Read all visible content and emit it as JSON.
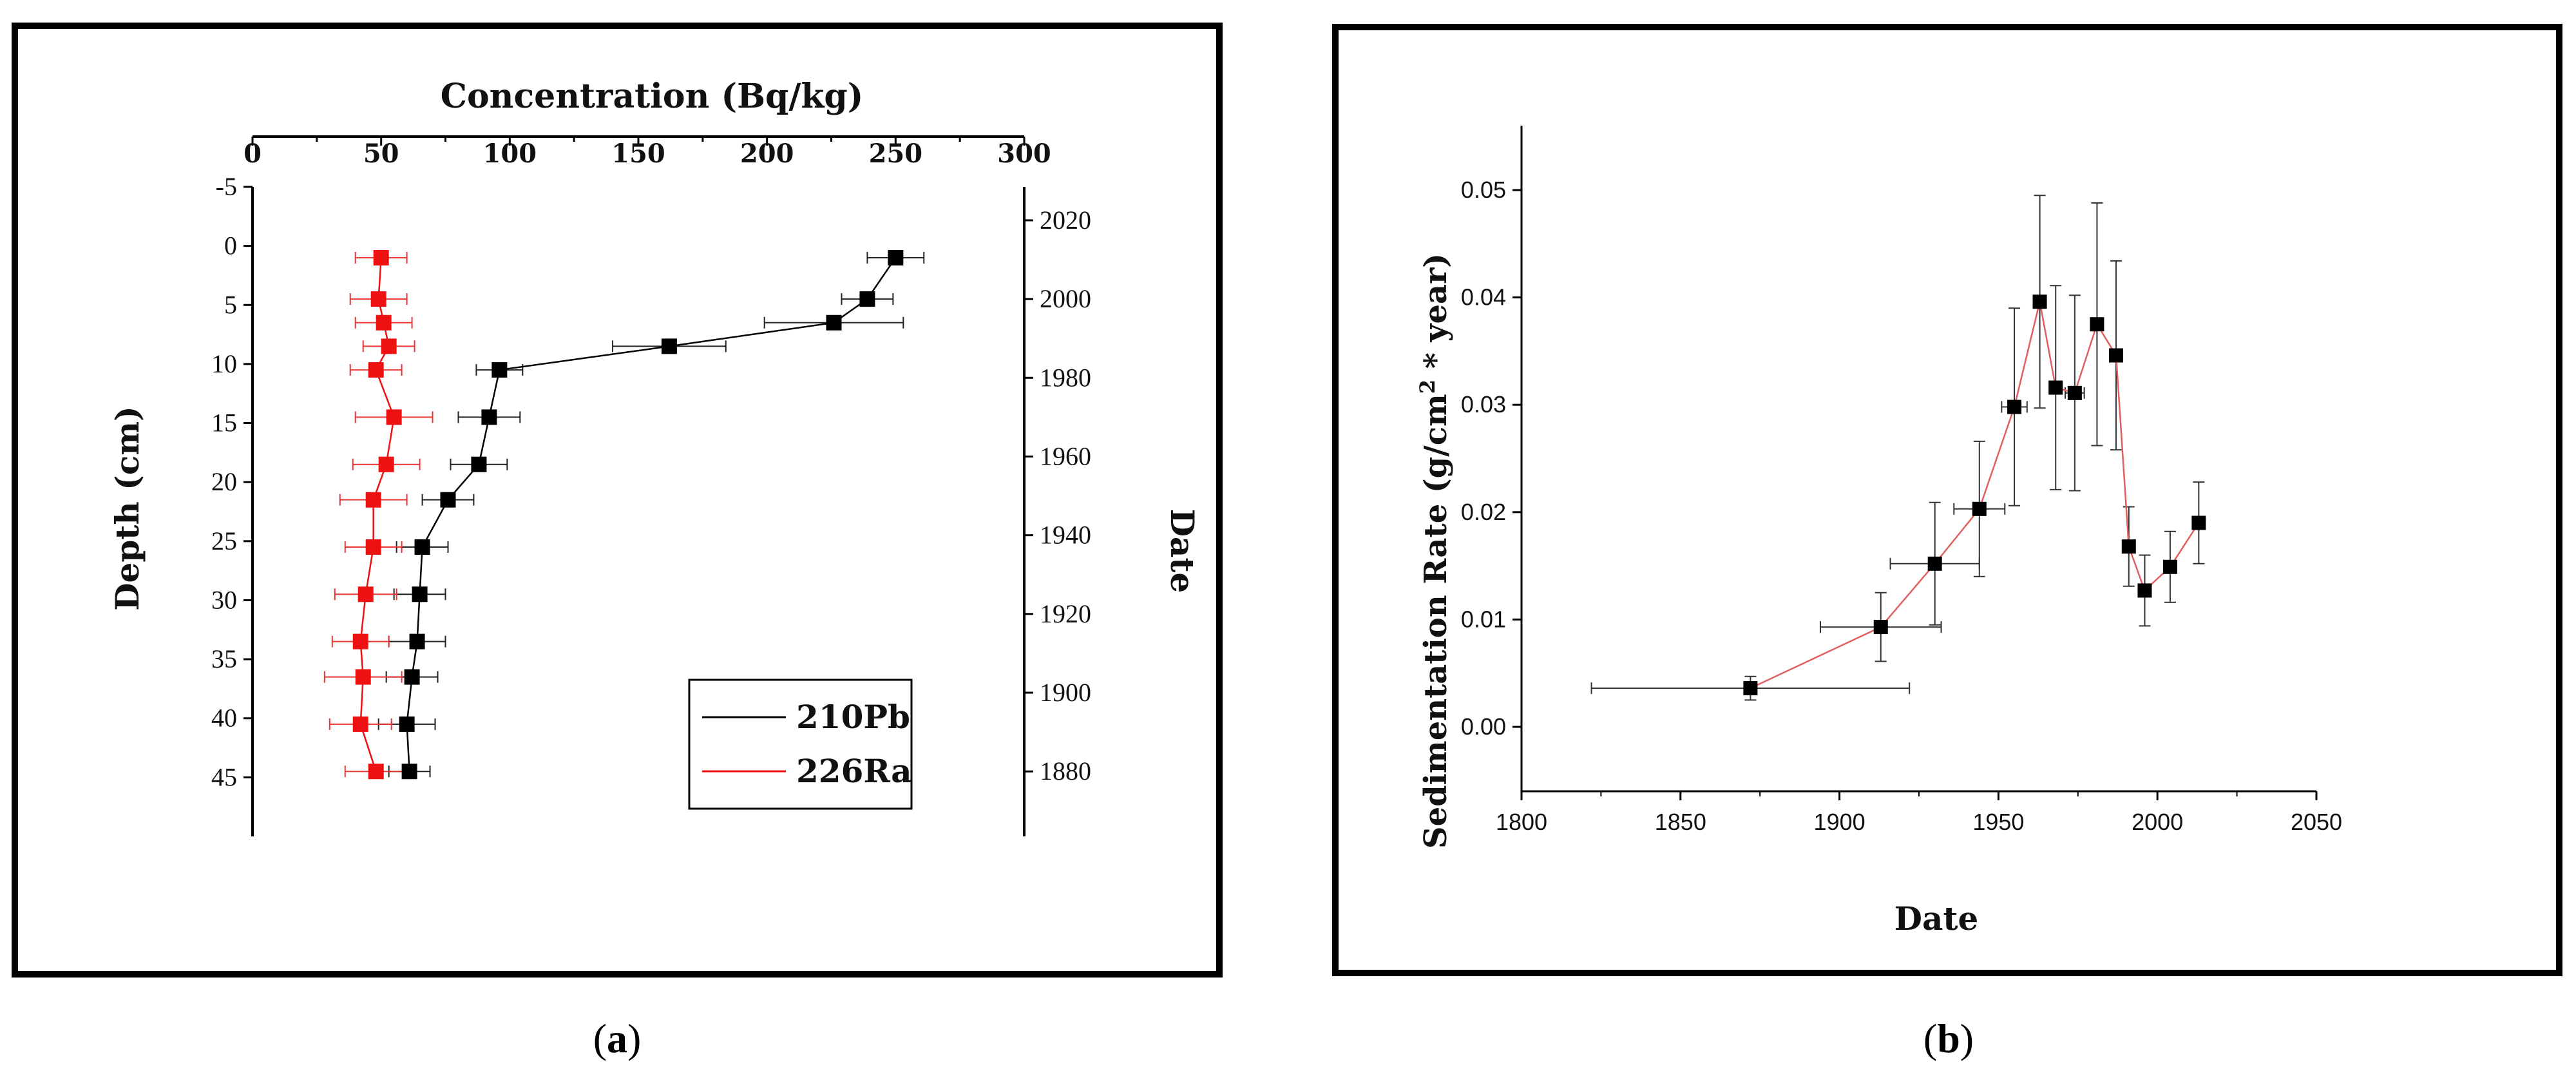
{
  "chart_data": [
    {
      "panel": "(a)",
      "type": "line",
      "title": "",
      "x_top_label": "Concentration (Bq/kg)",
      "y_left_label": "Depth (cm)",
      "y_right_label": "Date",
      "x_ticks": [
        "0",
        "50",
        "100",
        "150",
        "200",
        "250",
        "300"
      ],
      "y_left_ticks": [
        "-5",
        "0",
        "5",
        "10",
        "15",
        "20",
        "25",
        "30",
        "35",
        "40",
        "45"
      ],
      "y_right_ticks": [
        "2020",
        "2000",
        "1980",
        "1960",
        "1940",
        "1920",
        "1900",
        "1880"
      ],
      "xlim": [
        0,
        300
      ],
      "ylim": [
        -5,
        50
      ],
      "y_inverted": true,
      "legend_position": "bottom-right",
      "series": [
        {
          "name": "210Pb",
          "color": "#000000",
          "marker": "square",
          "points": [
            {
              "depth": 1,
              "value": 250,
              "err": 11
            },
            {
              "depth": 4.5,
              "value": 239,
              "err": 10
            },
            {
              "depth": 6.5,
              "value": 226,
              "err": 27
            },
            {
              "depth": 8.5,
              "value": 162,
              "err": 22
            },
            {
              "depth": 10.5,
              "value": 96,
              "err": 9
            },
            {
              "depth": 14.5,
              "value": 92,
              "err": 12
            },
            {
              "depth": 18.5,
              "value": 88,
              "err": 11
            },
            {
              "depth": 21.5,
              "value": 76,
              "err": 10
            },
            {
              "depth": 25.5,
              "value": 66,
              "err": 10
            },
            {
              "depth": 29.5,
              "value": 65,
              "err": 10
            },
            {
              "depth": 33.5,
              "value": 64,
              "err": 11
            },
            {
              "depth": 36.5,
              "value": 62,
              "err": 10
            },
            {
              "depth": 40.5,
              "value": 60,
              "err": 11
            },
            {
              "depth": 44.5,
              "value": 61,
              "err": 8
            }
          ]
        },
        {
          "name": "226Ra",
          "color": "#ee1111",
          "marker": "square",
          "points": [
            {
              "depth": 1,
              "value": 50,
              "err": 10
            },
            {
              "depth": 4.5,
              "value": 49,
              "err": 11
            },
            {
              "depth": 6.5,
              "value": 51,
              "err": 11
            },
            {
              "depth": 8.5,
              "value": 53,
              "err": 10
            },
            {
              "depth": 10.5,
              "value": 48,
              "err": 10
            },
            {
              "depth": 14.5,
              "value": 55,
              "err": 15
            },
            {
              "depth": 18.5,
              "value": 52,
              "err": 13
            },
            {
              "depth": 21.5,
              "value": 47,
              "err": 13
            },
            {
              "depth": 25.5,
              "value": 47,
              "err": 11
            },
            {
              "depth": 29.5,
              "value": 44,
              "err": 12
            },
            {
              "depth": 33.5,
              "value": 42,
              "err": 11
            },
            {
              "depth": 36.5,
              "value": 43,
              "err": 15
            },
            {
              "depth": 40.5,
              "value": 42,
              "err": 12
            },
            {
              "depth": 44.5,
              "value": 48,
              "err": 12
            }
          ]
        }
      ]
    },
    {
      "panel": "(b)",
      "type": "scatter",
      "title": "",
      "xlabel": "Date",
      "ylabel_main": "Sedimentation Rate (g/cm",
      "ylabel_sup": "2",
      "ylabel_tail": " * year)",
      "x_ticks": [
        "1800",
        "1850",
        "1900",
        "1950",
        "2000",
        "2050"
      ],
      "y_ticks": [
        "0.00",
        "0.01",
        "0.02",
        "0.03",
        "0.04",
        "0.05"
      ],
      "xlim": [
        1800,
        2050
      ],
      "ylim": [
        -0.006,
        0.056
      ],
      "series": [
        {
          "color": "#000000",
          "line_color": "#e06060",
          "marker": "square",
          "points": [
            {
              "x": 1872,
              "y": 0.0036,
              "xerr": 50,
              "yerr": 0.0011
            },
            {
              "x": 1913,
              "y": 0.0093,
              "xerr": 19,
              "yerr": 0.0032
            },
            {
              "x": 1930,
              "y": 0.0152,
              "xerr": 14,
              "yerr": 0.0057
            },
            {
              "x": 1944,
              "y": 0.0203,
              "xerr": 8,
              "yerr": 0.0063
            },
            {
              "x": 1955,
              "y": 0.0298,
              "xerr": 4,
              "yerr": 0.0092
            },
            {
              "x": 1963,
              "y": 0.0396,
              "xerr": 2,
              "yerr": 0.0099
            },
            {
              "x": 1968,
              "y": 0.0316,
              "xerr": 2,
              "yerr": 0.0095
            },
            {
              "x": 1974,
              "y": 0.0311,
              "xerr": 3,
              "yerr": 0.0091
            },
            {
              "x": 1981,
              "y": 0.0375,
              "xerr": 1,
              "yerr": 0.0113
            },
            {
              "x": 1987,
              "y": 0.0346,
              "xerr": 2,
              "yerr": 0.0088
            },
            {
              "x": 1991,
              "y": 0.0168,
              "xerr": 1,
              "yerr": 0.0037
            },
            {
              "x": 1996,
              "y": 0.0127,
              "xerr": 1,
              "yerr": 0.0033
            },
            {
              "x": 2004,
              "y": 0.0149,
              "xerr": 1,
              "yerr": 0.0033
            },
            {
              "x": 2013,
              "y": 0.019,
              "xerr": 0.5,
              "yerr": 0.0038
            }
          ]
        }
      ]
    }
  ],
  "captions": {
    "a_open": "(",
    "a_letter": "a",
    "a_close": ")",
    "b_open": "(",
    "b_letter": "b",
    "b_close": ")"
  }
}
